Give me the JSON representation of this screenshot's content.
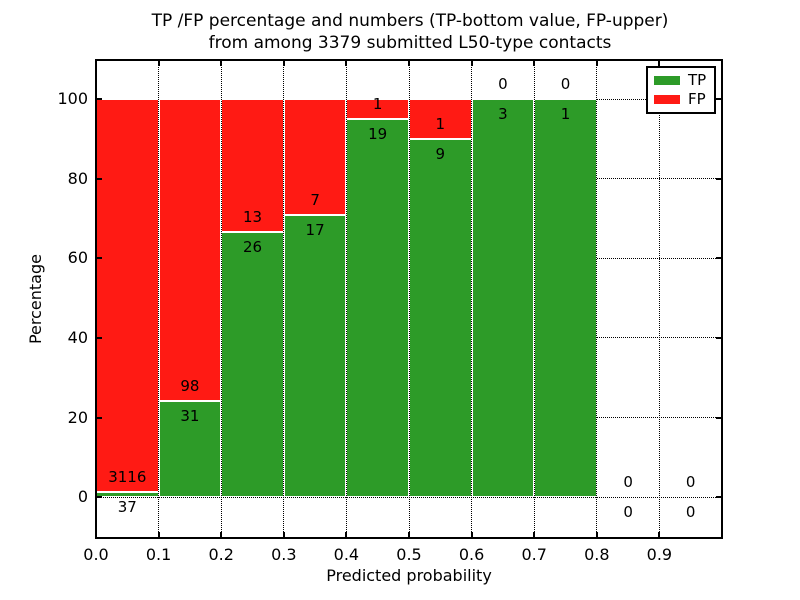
{
  "figure": {
    "title_line1": "TP /FP percentage and numbers (TP-bottom value, FP-upper)",
    "title_line2": "from among 3379 submitted L50-type contacts",
    "background": "#ffffff"
  },
  "chart_data": {
    "type": "bar",
    "stacked": true,
    "title": "TP /FP percentage and numbers (TP-bottom value, FP-upper) from among 3379 submitted L50-type contacts",
    "xlabel": "Predicted probability",
    "ylabel": "Percentage",
    "xlim": [
      0.0,
      1.0
    ],
    "ylim": [
      -10.3,
      109.9
    ],
    "x_ticks": [
      "0.0",
      "0.1",
      "0.2",
      "0.3",
      "0.4",
      "0.5",
      "0.6",
      "0.7",
      "0.8",
      "0.9"
    ],
    "y_ticks": [
      0,
      20,
      40,
      60,
      80,
      100
    ],
    "grid": true,
    "grid_style": "dotted",
    "legend_position": "upper right",
    "bin_edges": [
      0.0,
      0.1,
      0.2,
      0.3,
      0.4,
      0.5,
      0.6,
      0.7,
      0.8,
      0.9,
      1.0
    ],
    "categories": [
      "0.0-0.1",
      "0.1-0.2",
      "0.2-0.3",
      "0.3-0.4",
      "0.4-0.5",
      "0.5-0.6",
      "0.6-0.7",
      "0.7-0.8",
      "0.8-0.9",
      "0.9-1.0"
    ],
    "series": [
      {
        "name": "TP",
        "color": "#2d9b28",
        "counts": [
          37,
          31,
          26,
          17,
          19,
          9,
          3,
          1,
          0,
          0
        ],
        "percent": [
          1.17,
          24.03,
          66.67,
          70.83,
          95.0,
          90.0,
          100.0,
          100.0,
          0.0,
          0.0
        ]
      },
      {
        "name": "FP",
        "color": "#ff1a14",
        "counts": [
          3116,
          98,
          13,
          7,
          1,
          1,
          0,
          0,
          0,
          0
        ],
        "percent": [
          98.83,
          75.97,
          33.33,
          29.17,
          5.0,
          10.0,
          0.0,
          0.0,
          0.0,
          0.0
        ]
      }
    ],
    "total_contacts": 3379
  },
  "legend": {
    "items": [
      {
        "label": "TP",
        "color": "#2d9b28"
      },
      {
        "label": "FP",
        "color": "#ff1a14"
      }
    ]
  }
}
